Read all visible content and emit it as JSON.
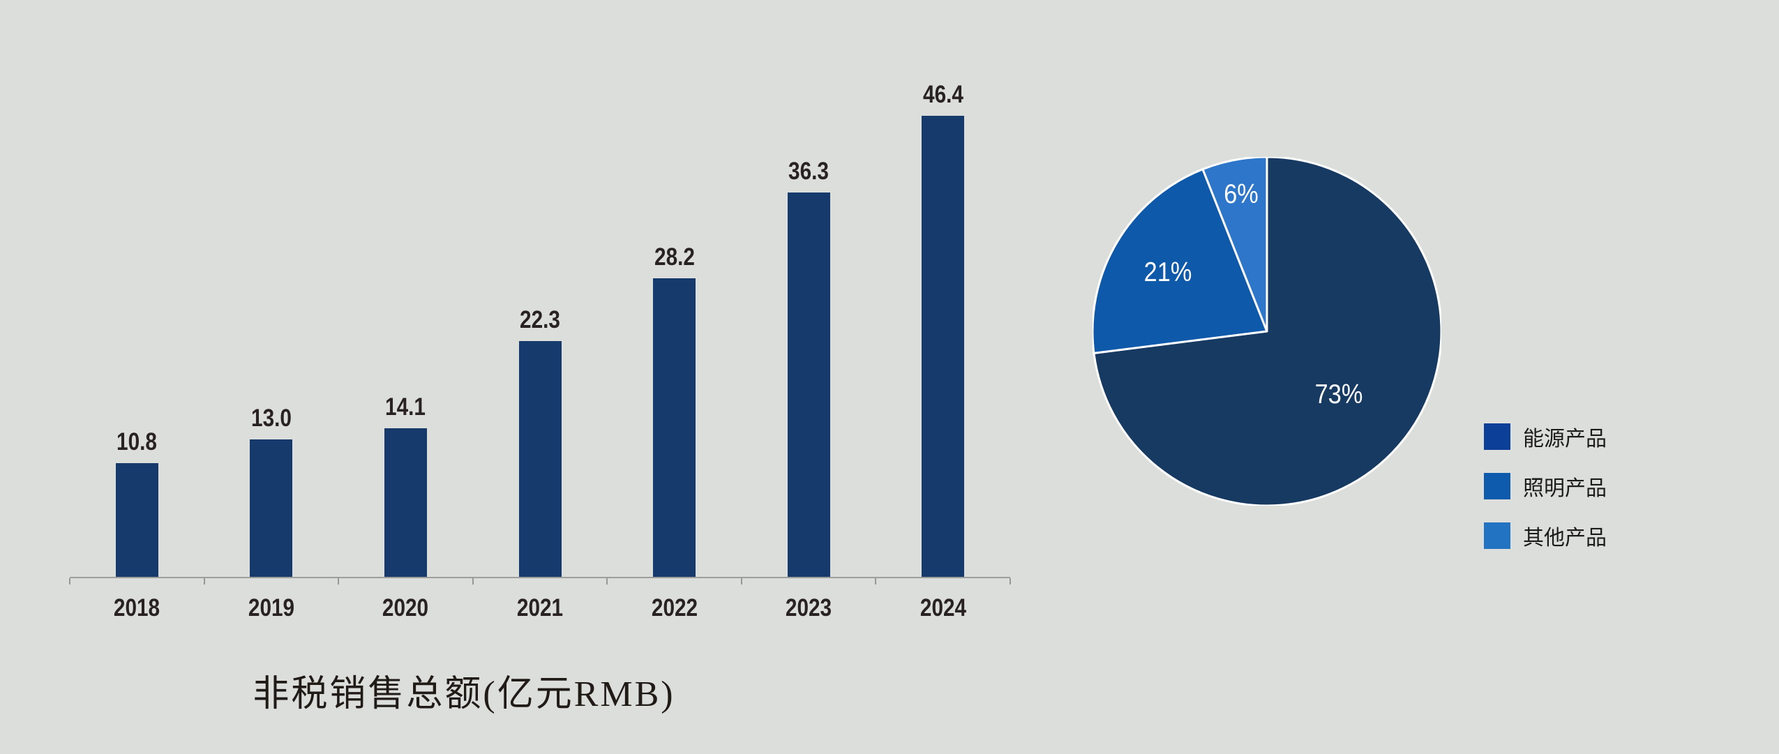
{
  "background_color": "#dcdedc",
  "chart_data": [
    {
      "type": "bar",
      "title": "非税销售总额(亿元RMB)",
      "categories": [
        "2018",
        "2019",
        "2020",
        "2021",
        "2022",
        "2023",
        "2024"
      ],
      "values": [
        10.8,
        13.0,
        14.1,
        22.3,
        28.2,
        36.3,
        46.4
      ],
      "value_labels": [
        "10.8",
        "13.0",
        "14.1",
        "22.3",
        "28.2",
        "36.3",
        "46.4"
      ],
      "xlabel": "",
      "ylabel": "",
      "ylim": [
        0,
        50
      ],
      "grid": false,
      "legend_position": "none",
      "bar_color": "#173a6c",
      "axis_color": "#9e9e9c",
      "label_color": "#282222"
    },
    {
      "type": "pie",
      "start_angle_deg": 0,
      "direction": "clockwise",
      "slices": [
        {
          "label": "能源产品",
          "percent": 73,
          "percent_label": "73%",
          "color": "#173a62",
          "legend_color": "#0c3f97"
        },
        {
          "label": "照明产品",
          "percent": 21,
          "percent_label": "21%",
          "color": "#0e59a9",
          "legend_color": "#0e5bad"
        },
        {
          "label": "其他产品",
          "percent": 6,
          "percent_label": "6%",
          "color": "#2e76c9",
          "legend_color": "#2273c2"
        }
      ],
      "slice_border_color": "#ffffff",
      "label_color": "#ffffff",
      "legend_position": "right-bottom"
    }
  ]
}
